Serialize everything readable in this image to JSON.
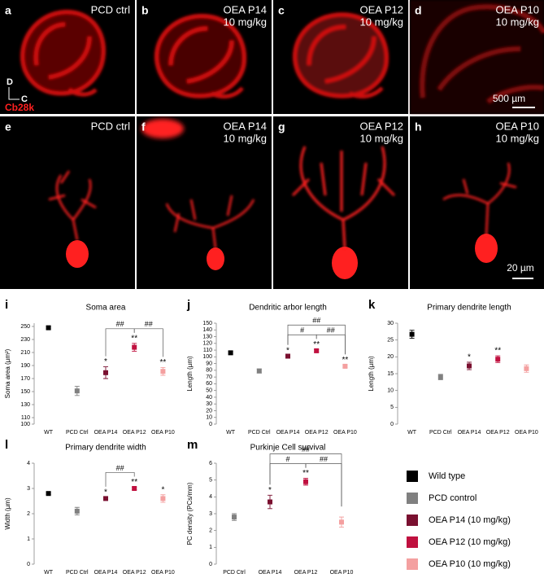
{
  "image_panels": [
    {
      "letter": "a",
      "label_lines": [
        "PCD ctrl"
      ]
    },
    {
      "letter": "b",
      "label_lines": [
        "OEA P14",
        "10 mg/kg"
      ]
    },
    {
      "letter": "c",
      "label_lines": [
        "OEA P12",
        "10 mg/kg"
      ]
    },
    {
      "letter": "d",
      "label_lines": [
        "OEA P10",
        "10 mg/kg"
      ]
    },
    {
      "letter": "e",
      "label_lines": [
        "PCD ctrl"
      ]
    },
    {
      "letter": "f",
      "label_lines": [
        "OEA P14",
        "10 mg/kg"
      ]
    },
    {
      "letter": "g",
      "label_lines": [
        "OEA P12",
        "10 mg/kg"
      ]
    },
    {
      "letter": "h",
      "label_lines": [
        "OEA P10",
        "10 mg/kg"
      ]
    }
  ],
  "orientation": {
    "dorsal": "D",
    "caudal": "C",
    "stain": "Cb28k"
  },
  "scale_bars": [
    "500 µm",
    "20 µm"
  ],
  "chart_data": [
    {
      "type": "dot",
      "panel": "i",
      "title": "Soma area",
      "ylabel": "Soma area (µm²)",
      "categories": [
        "WT",
        "PCD Ctrl",
        "OEA P14",
        "OEA P12",
        "OEA P10"
      ],
      "colors": [
        "#000000",
        "#808080",
        "#7a1030",
        "#c0103f",
        "#f4a0a0"
      ],
      "values": [
        248,
        151,
        179,
        218,
        181
      ],
      "errors": [
        2,
        7,
        9,
        6,
        6
      ],
      "stars": [
        null,
        null,
        "*",
        "**",
        "**"
      ],
      "brackets": [
        {
          "from": "OEA P14",
          "to": "OEA P12",
          "label": "##"
        },
        {
          "from": "OEA P12",
          "to": "OEA P10",
          "label": "##"
        }
      ],
      "ylim": [
        100,
        255
      ],
      "yticks": [
        100,
        110,
        130,
        150,
        170,
        190,
        210,
        230,
        250
      ]
    },
    {
      "type": "dot",
      "panel": "j",
      "title": "Dendritic arbor length",
      "ylabel": "Length (µm)",
      "categories": [
        "WT",
        "PCD Ctrl",
        "OEA P14",
        "OEA P12",
        "OEA P10"
      ],
      "colors": [
        "#000000",
        "#808080",
        "#7a1030",
        "#c0103f",
        "#f4a0a0"
      ],
      "values": [
        106,
        79,
        101,
        109,
        86
      ],
      "errors": [
        2,
        3,
        1,
        2,
        2
      ],
      "stars": [
        null,
        null,
        "*",
        "**",
        "**"
      ],
      "brackets": [
        {
          "from": "OEA P14",
          "to": "OEA P12",
          "label": "#"
        },
        {
          "from": "OEA P12",
          "to": "OEA P10",
          "label": "##"
        },
        {
          "from": "OEA P14",
          "to": "OEA P10",
          "label": "##"
        }
      ],
      "ylim": [
        0,
        150
      ],
      "yticks": [
        0,
        10,
        20,
        30,
        40,
        50,
        60,
        70,
        80,
        90,
        100,
        110,
        120,
        130,
        140,
        150
      ]
    },
    {
      "type": "dot",
      "panel": "k",
      "title": "Primary dendrite length",
      "ylabel": "Length (µm)",
      "categories": [
        "WT",
        "PCD Ctrl",
        "OEA P14",
        "OEA P12",
        "OEA P10"
      ],
      "colors": [
        "#000000",
        "#808080",
        "#7a1030",
        "#c0103f",
        "#f4a0a0"
      ],
      "values": [
        26.7,
        14,
        17.3,
        19.3,
        16.5
      ],
      "errors": [
        1.2,
        0.8,
        1.1,
        1,
        1.1
      ],
      "stars": [
        null,
        null,
        "*",
        "**",
        null
      ],
      "brackets": [],
      "ylim": [
        0,
        30
      ],
      "yticks": [
        0,
        5,
        10,
        15,
        20,
        25,
        30
      ]
    },
    {
      "type": "dot",
      "panel": "l",
      "title": "Primary dendrite width",
      "ylabel": "Width (µm)",
      "categories": [
        "WT",
        "PCD Ctrl",
        "OEA P14",
        "OEA P12",
        "OEA P10"
      ],
      "colors": [
        "#000000",
        "#808080",
        "#7a1030",
        "#c0103f",
        "#f4a0a0"
      ],
      "values": [
        2.8,
        2.1,
        2.6,
        3.0,
        2.6
      ],
      "errors": [
        0.04,
        0.15,
        0.05,
        0.05,
        0.15
      ],
      "stars": [
        null,
        null,
        "*",
        "**",
        "*"
      ],
      "brackets": [
        {
          "from": "OEA P14",
          "to": "OEA P12",
          "label": "##"
        }
      ],
      "ylim": [
        0,
        4
      ],
      "yticks": [
        0,
        1,
        2,
        3,
        4
      ]
    },
    {
      "type": "dot",
      "panel": "m",
      "title": "Purkinje Cell survival",
      "ylabel": "PC density (PCs/mm)",
      "categories": [
        "PCD Ctrl",
        "OEA P14",
        "OEA P12",
        "OEA P10"
      ],
      "colors": [
        "#808080",
        "#7a1030",
        "#c0103f",
        "#f4a0a0"
      ],
      "values": [
        2.8,
        3.7,
        4.9,
        2.5
      ],
      "errors": [
        0.2,
        0.4,
        0.2,
        0.3
      ],
      "stars": [
        null,
        "*",
        "**",
        null
      ],
      "brackets": [
        {
          "from": "OEA P14",
          "to": "OEA P12",
          "label": "#"
        },
        {
          "from": "OEA P12",
          "to": "OEA P10",
          "label": "##"
        },
        {
          "from": "OEA P14",
          "to": "OEA P10",
          "label": "##"
        }
      ],
      "ylim": [
        0,
        6
      ],
      "yticks": [
        0,
        1,
        2,
        3,
        4,
        5,
        6
      ]
    }
  ],
  "legend": [
    {
      "name": "Wild type",
      "color": "#000000"
    },
    {
      "name": "PCD control",
      "color": "#808080"
    },
    {
      "name": "OEA P14 (10 mg/kg)",
      "color": "#7a1030"
    },
    {
      "name": "OEA P12 (10 mg/kg)",
      "color": "#c0103f"
    },
    {
      "name": "OEA  P10 (10 mg/kg)",
      "color": "#f4a0a0"
    }
  ]
}
